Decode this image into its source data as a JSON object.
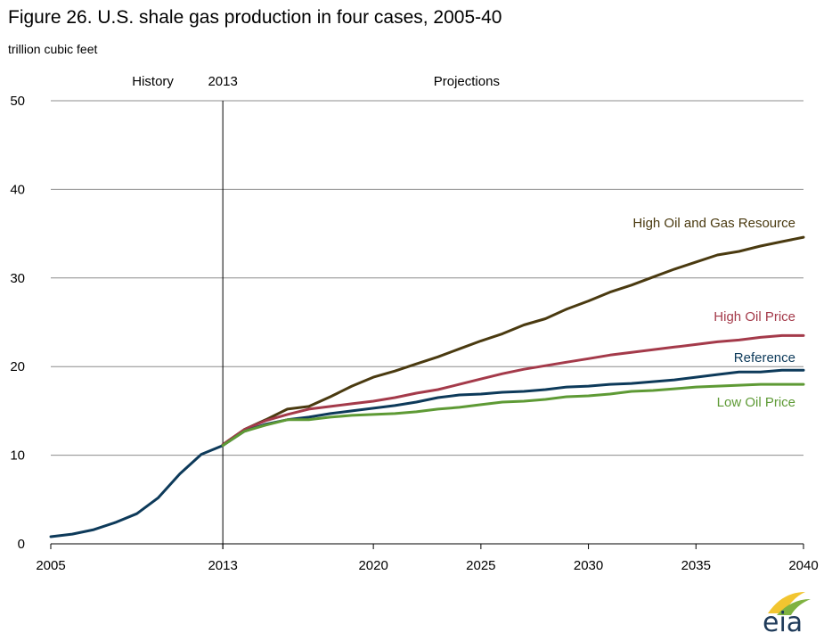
{
  "chart_data": {
    "type": "line",
    "title": "Figure 26. U.S. shale gas production in four cases, 2005-40",
    "ylabel": "trillion cubic feet",
    "xlim": [
      2005,
      2040
    ],
    "ylim": [
      0,
      50
    ],
    "xticks": [
      2005,
      2013,
      2020,
      2025,
      2030,
      2035,
      2040
    ],
    "yticks": [
      0,
      10,
      20,
      30,
      40,
      50
    ],
    "grid": true,
    "divider": {
      "x": 2013
    },
    "region_labels": {
      "history": "History",
      "divider": "2013",
      "projections": "Projections"
    },
    "colors": {
      "reference": "#0d3a5a",
      "high_resource": "#4a3a10",
      "high_price": "#a43a4a",
      "low_price": "#5e9a35",
      "grid": "#8c8c8c"
    },
    "series": [
      {
        "name": "High Oil and Gas Resource",
        "key": "high_resource",
        "x": [
          2013,
          2014,
          2015,
          2016,
          2017,
          2018,
          2019,
          2020,
          2021,
          2022,
          2023,
          2024,
          2025,
          2026,
          2027,
          2028,
          2029,
          2030,
          2031,
          2032,
          2033,
          2034,
          2035,
          2036,
          2037,
          2038,
          2039,
          2040
        ],
        "values": [
          11.2,
          12.9,
          14.0,
          15.2,
          15.5,
          16.6,
          17.8,
          18.8,
          19.5,
          20.3,
          21.1,
          22.0,
          22.9,
          23.7,
          24.7,
          25.4,
          26.5,
          27.4,
          28.4,
          29.2,
          30.1,
          31.0,
          31.8,
          32.6,
          33.0,
          33.6,
          34.1,
          34.6
        ]
      },
      {
        "name": "High Oil Price",
        "key": "high_price",
        "x": [
          2013,
          2014,
          2015,
          2016,
          2017,
          2018,
          2019,
          2020,
          2021,
          2022,
          2023,
          2024,
          2025,
          2026,
          2027,
          2028,
          2029,
          2030,
          2031,
          2032,
          2033,
          2034,
          2035,
          2036,
          2037,
          2038,
          2039,
          2040
        ],
        "values": [
          11.2,
          12.9,
          13.9,
          14.6,
          15.2,
          15.5,
          15.8,
          16.1,
          16.5,
          17.0,
          17.4,
          18.0,
          18.6,
          19.2,
          19.7,
          20.1,
          20.5,
          20.9,
          21.3,
          21.6,
          21.9,
          22.2,
          22.5,
          22.8,
          23.0,
          23.3,
          23.5,
          23.5
        ]
      },
      {
        "name": "Reference",
        "key": "reference",
        "x": [
          2005,
          2006,
          2007,
          2008,
          2009,
          2010,
          2011,
          2012,
          2013,
          2014,
          2015,
          2016,
          2017,
          2018,
          2019,
          2020,
          2021,
          2022,
          2023,
          2024,
          2025,
          2026,
          2027,
          2028,
          2029,
          2030,
          2031,
          2032,
          2033,
          2034,
          2035,
          2036,
          2037,
          2038,
          2039,
          2040
        ],
        "values": [
          0.8,
          1.1,
          1.6,
          2.4,
          3.4,
          5.2,
          7.9,
          10.1,
          11.1,
          12.7,
          13.5,
          14.0,
          14.3,
          14.7,
          15.0,
          15.3,
          15.6,
          16.0,
          16.5,
          16.8,
          16.9,
          17.1,
          17.2,
          17.4,
          17.7,
          17.8,
          18.0,
          18.1,
          18.3,
          18.5,
          18.8,
          19.1,
          19.4,
          19.4,
          19.6,
          19.6
        ]
      },
      {
        "name": "Low Oil Price",
        "key": "low_price",
        "x": [
          2013,
          2014,
          2015,
          2016,
          2017,
          2018,
          2019,
          2020,
          2021,
          2022,
          2023,
          2024,
          2025,
          2026,
          2027,
          2028,
          2029,
          2030,
          2031,
          2032,
          2033,
          2034,
          2035,
          2036,
          2037,
          2038,
          2039,
          2040
        ],
        "values": [
          11.1,
          12.7,
          13.4,
          14.0,
          14.0,
          14.3,
          14.5,
          14.6,
          14.7,
          14.9,
          15.2,
          15.4,
          15.7,
          16.0,
          16.1,
          16.3,
          16.6,
          16.7,
          16.9,
          17.2,
          17.3,
          17.5,
          17.7,
          17.8,
          17.9,
          18.0,
          18.0,
          18.0
        ]
      }
    ]
  },
  "logo": {
    "text": "eia"
  }
}
